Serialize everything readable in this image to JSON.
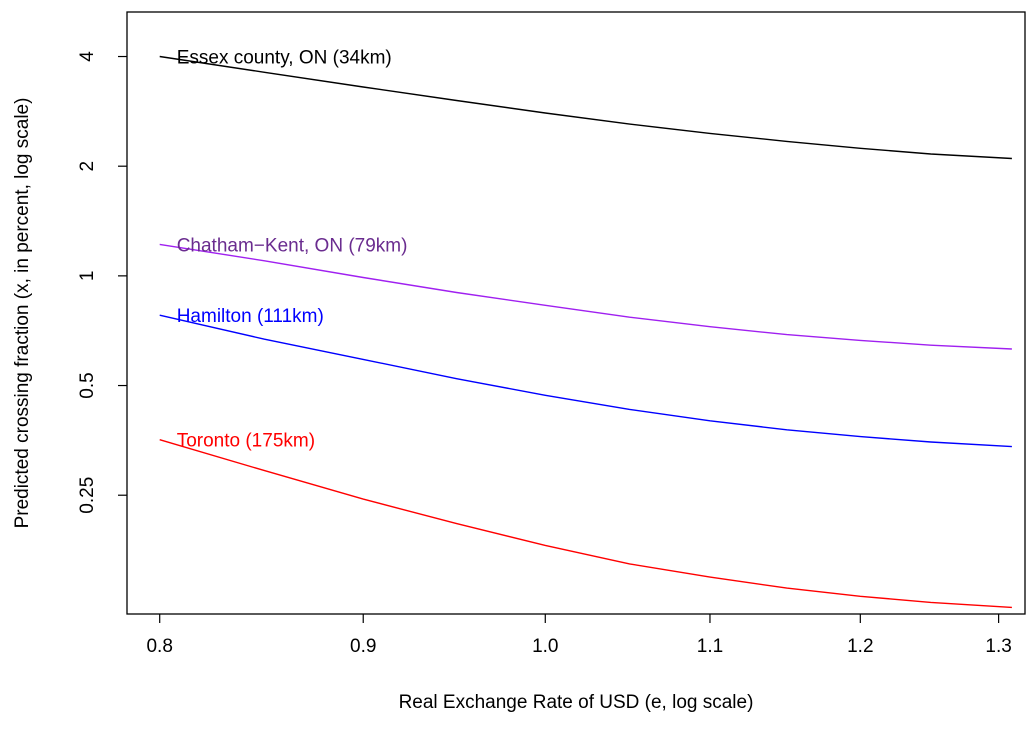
{
  "chart_data": {
    "type": "line",
    "title": "",
    "xlabel": "Real Exchange Rate of USD (e, log scale)",
    "ylabel": "Predicted crossing fraction (x, in percent, log scale)",
    "x_scale": "log",
    "y_scale": "log",
    "xlim": [
      0.785,
      1.32
    ],
    "ylim": [
      0.118,
      5.3
    ],
    "x_ticks": [
      0.8,
      0.9,
      1.0,
      1.1,
      1.2,
      1.3
    ],
    "x_tick_labels": [
      "0.8",
      "0.9",
      "1.0",
      "1.1",
      "1.2",
      "1.3"
    ],
    "y_ticks": [
      0.25,
      0.5,
      1,
      2,
      4
    ],
    "y_tick_labels": [
      "0.25",
      "0.5",
      "1",
      "2",
      "4"
    ],
    "grid": false,
    "series": [
      {
        "name": "Essex county, ON (34km)",
        "color": "#000000",
        "x": [
          0.8,
          0.85,
          0.9,
          0.95,
          1.0,
          1.05,
          1.1,
          1.15,
          1.2,
          1.25,
          1.31
        ],
        "y": [
          4.0,
          3.62,
          3.3,
          3.03,
          2.8,
          2.61,
          2.46,
          2.34,
          2.24,
          2.16,
          2.1
        ]
      },
      {
        "name": "Chatham−Kent, ON (79km)",
        "color": "#a020f0",
        "label_color": "#6a2c8f",
        "x": [
          0.8,
          0.85,
          0.9,
          0.95,
          1.0,
          1.05,
          1.1,
          1.15,
          1.2,
          1.25,
          1.31
        ],
        "y": [
          1.22,
          1.1,
          0.99,
          0.9,
          0.83,
          0.77,
          0.725,
          0.69,
          0.665,
          0.645,
          0.63
        ]
      },
      {
        "name": "Hamilton (111km)",
        "color": "#0000ff",
        "x": [
          0.8,
          0.85,
          0.9,
          0.95,
          1.0,
          1.05,
          1.1,
          1.15,
          1.2,
          1.25,
          1.31
        ],
        "y": [
          0.78,
          0.67,
          0.59,
          0.522,
          0.47,
          0.43,
          0.4,
          0.378,
          0.362,
          0.35,
          0.34
        ]
      },
      {
        "name": "Toronto (175km)",
        "color": "#ff0000",
        "x": [
          0.8,
          0.85,
          0.9,
          0.95,
          1.0,
          1.05,
          1.1,
          1.15,
          1.2,
          1.25,
          1.31
        ],
        "y": [
          0.355,
          0.292,
          0.244,
          0.209,
          0.182,
          0.162,
          0.149,
          0.139,
          0.132,
          0.127,
          0.123
        ]
      }
    ]
  }
}
